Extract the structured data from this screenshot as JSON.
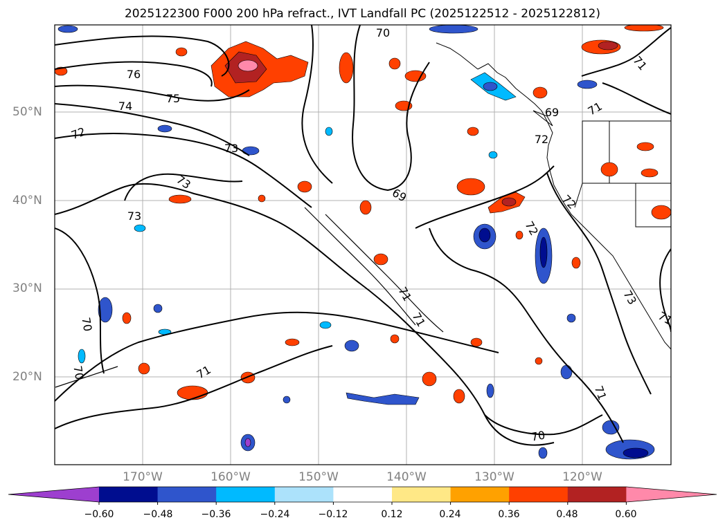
{
  "title": "2025122300 F000 200 hPa refract., IVT Landfall PC (2025122512 - 2025122812)",
  "lat_labels": [
    "50°N",
    "40°N",
    "30°N",
    "20°N"
  ],
  "lon_labels": [
    "170°W",
    "160°W",
    "150°W",
    "140°W",
    "130°W",
    "120°W"
  ],
  "contour_labels": [
    "70",
    "76",
    "75",
    "74",
    "72",
    "73",
    "73",
    "73",
    "69",
    "69",
    "71",
    "71",
    "72",
    "72",
    "72",
    "71",
    "71",
    "73",
    "71",
    "70",
    "70",
    "71",
    "70",
    "71"
  ],
  "colorbar": {
    "ticks": [
      "−0.60",
      "−0.48",
      "−0.36",
      "−0.24",
      "−0.12",
      "0.12",
      "0.24",
      "0.36",
      "0.48",
      "0.60"
    ],
    "colors": [
      "#9d3fcf",
      "#000d8f",
      "#2f55cc",
      "#00baff",
      "#ace2fb",
      "#ffffff",
      "#ffe886",
      "#ffa100",
      "#ff4000",
      "#b22222",
      "#ff89aa"
    ]
  }
}
